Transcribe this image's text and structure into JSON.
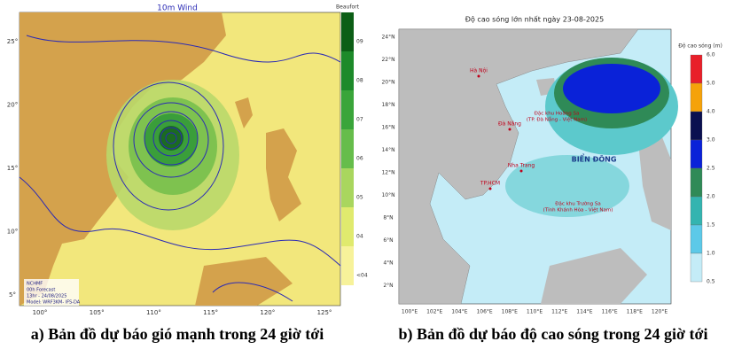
{
  "wind_map": {
    "title": "10m Wind",
    "colorbar_title": "Beaufort",
    "colorbar_labels": [
      "09",
      "08",
      "07",
      "06",
      "05",
      "04",
      "<04"
    ],
    "lat_labels": [
      "25°",
      "20°",
      "15°",
      "10°",
      "5°"
    ],
    "lon_labels": [
      "100°",
      "105°",
      "110°",
      "115°",
      "120°",
      "125°"
    ],
    "legend": [
      "NCHMF",
      "00h Forecast",
      "13hr - 24/08/2025",
      "Model: WRF3KM- IFS-DA"
    ]
  },
  "wave_map": {
    "title": "Độ cao sóng lớn nhất ngày 23-08-2025",
    "colorbar_title": "Độ cao sóng (m)",
    "colorbar_labels": [
      "6.0",
      "5.0",
      "4.0",
      "3.0",
      "2.5",
      "2.0",
      "1.5",
      "1.0",
      "0.5"
    ],
    "lat_labels": [
      "24°N",
      "22°N",
      "20°N",
      "18°N",
      "16°N",
      "14°N",
      "12°N",
      "10°N",
      "8°N",
      "6°N",
      "4°N",
      "2°N"
    ],
    "lon_labels": [
      "100°E",
      "102°E",
      "104°E",
      "106°E",
      "108°E",
      "110°E",
      "112°E",
      "114°E",
      "116°E",
      "118°E",
      "120°E"
    ],
    "places": {
      "sea": "BIỂN ĐÔNG",
      "hoang_sa": [
        "Đặc khu Hoàng Sa",
        "(TP. Đà Nẵng - Việt Nam)"
      ],
      "truong_sa": [
        "Đặc khu Trường Sa",
        "(Tỉnh Khánh Hòa - Việt Nam)"
      ],
      "cities": [
        "Hà Nội",
        "Đà Nẵng",
        "Nha Trang",
        "TP.HCM"
      ]
    }
  },
  "captions": {
    "left": "a) Bản đồ dự báo gió mạnh trong 24 giờ tới",
    "right": "b) Bản đồ dự báo độ cao sóng trong 24 giờ tới"
  }
}
